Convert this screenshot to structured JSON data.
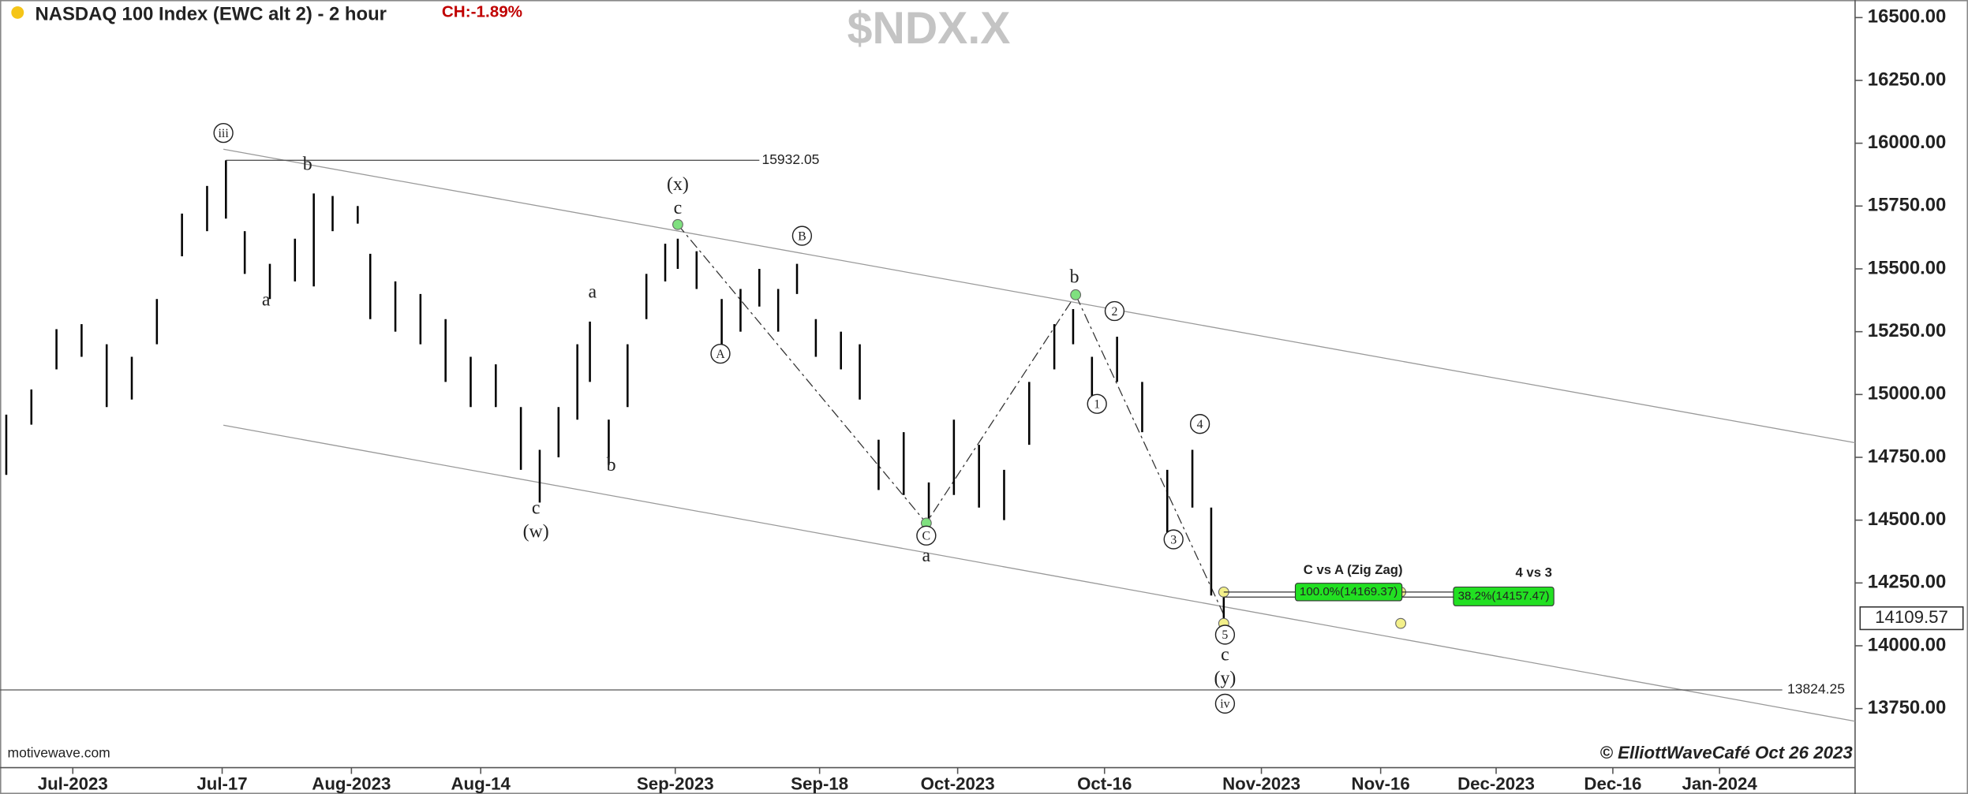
{
  "chart_data": {
    "type": "ohlc",
    "title": "NASDAQ 100 Index (EWC alt 2) - 2 hour",
    "change": "CH:-1.89%",
    "symbol": "$NDX.X",
    "color": "#000000",
    "bars": {
      "x": [
        0.5,
        2.5,
        4.5,
        6.5,
        8.5,
        10.5,
        12.5,
        14.5,
        16.5,
        18.0,
        19.5,
        21.5,
        23.5,
        25.0,
        26.5,
        28.5,
        29.5,
        31.5,
        33.5,
        35.5,
        37.5,
        39.5,
        41.5,
        43.0,
        44.5,
        46.0,
        47.0,
        48.5,
        50.0,
        51.5,
        53.0,
        54.0,
        55.5,
        57.5,
        59.0,
        60.5,
        62.0,
        63.5,
        65.0,
        67.0,
        68.5,
        70.0,
        72.0,
        74.0,
        76.0,
        78.0,
        80.0,
        82.0,
        84.0,
        85.5,
        87.0,
        89.0,
        91.0,
        93.0,
        95.0,
        96.5,
        97.5
      ],
      "low": [
        14680,
        14880,
        15100,
        15150,
        14950,
        14980,
        15200,
        15550,
        15650,
        15700,
        15480,
        15380,
        15450,
        15430,
        15650,
        15680,
        15300,
        15250,
        15200,
        15050,
        14950,
        14950,
        14700,
        14570,
        14750,
        14900,
        15050,
        14720,
        14950,
        15300,
        15450,
        15500,
        15420,
        15200,
        15250,
        15350,
        15250,
        15400,
        15150,
        15100,
        14980,
        14620,
        14600,
        14450,
        14600,
        14550,
        14500,
        14800,
        15100,
        15200,
        14950,
        15050,
        14850,
        14450,
        14550,
        14200,
        14080
      ],
      "high": [
        14920,
        15020,
        15260,
        15280,
        15200,
        15150,
        15380,
        15720,
        15830,
        15932,
        15650,
        15520,
        15620,
        15800,
        15790,
        15750,
        15560,
        15450,
        15400,
        15300,
        15150,
        15120,
        14950,
        14780,
        14950,
        15200,
        15290,
        14900,
        15200,
        15480,
        15600,
        15620,
        15570,
        15380,
        15420,
        15500,
        15420,
        15520,
        15300,
        15250,
        15200,
        14820,
        14850,
        14650,
        14900,
        14800,
        14700,
        15050,
        15280,
        15340,
        15150,
        15230,
        15050,
        14700,
        14780,
        14550,
        14200
      ]
    },
    "xlim": [
      0,
      147.8
    ],
    "ylim": [
      13515,
      16570
    ],
    "yticks": [
      {
        "value": 16500,
        "label": "16500.00"
      },
      {
        "value": 16250,
        "label": "16250.00"
      },
      {
        "value": 16000,
        "label": "16000.00"
      },
      {
        "value": 15750,
        "label": "15750.00"
      },
      {
        "value": 15500,
        "label": "15500.00"
      },
      {
        "value": 15250,
        "label": "15250.00"
      },
      {
        "value": 15000,
        "label": "15000.00"
      },
      {
        "value": 14750,
        "label": "14750.00"
      },
      {
        "value": 14500,
        "label": "14500.00"
      },
      {
        "value": 14250,
        "label": "14250.00"
      },
      {
        "value": 14000,
        "label": "14000.00"
      },
      {
        "value": 13750,
        "label": "13750.00"
      }
    ],
    "xticks": [
      {
        "value": 5.8,
        "label": "Jul-2023"
      },
      {
        "value": 17.7,
        "label": "Jul-17"
      },
      {
        "value": 28,
        "label": "Aug-2023"
      },
      {
        "value": 38.3,
        "label": "Aug-14"
      },
      {
        "value": 53.8,
        "label": "Sep-2023"
      },
      {
        "value": 65.3,
        "label": "Sep-18"
      },
      {
        "value": 76.3,
        "label": "Oct-2023"
      },
      {
        "value": 88,
        "label": "Oct-16"
      },
      {
        "value": 100.5,
        "label": "Nov-2023"
      },
      {
        "value": 110,
        "label": "Nov-16"
      },
      {
        "value": 119.2,
        "label": "Dec-2023"
      },
      {
        "value": 128.5,
        "label": "Dec-16"
      },
      {
        "value": 137,
        "label": "Jan-2024"
      }
    ],
    "price_levels": [
      15932.05,
      13824.25
    ],
    "last_price": 14109.57,
    "annotations": [
      "iii",
      "b",
      "a",
      "a",
      "b",
      "c",
      "(w)",
      "(x)",
      "c",
      "B",
      "A",
      "C",
      "a",
      "b",
      "2",
      "1",
      "3",
      "4",
      "5",
      "c",
      "(y)",
      "iv"
    ],
    "fib_titles": [
      "C vs A (Zig Zag)",
      "4 vs 3"
    ],
    "fib_labels": [
      "100.0%(14169.37)",
      "38.2%(14157.47)"
    ],
    "source": "motivewave.com",
    "copyright": "© ElliottWaveCafé Oct 26 2023"
  }
}
